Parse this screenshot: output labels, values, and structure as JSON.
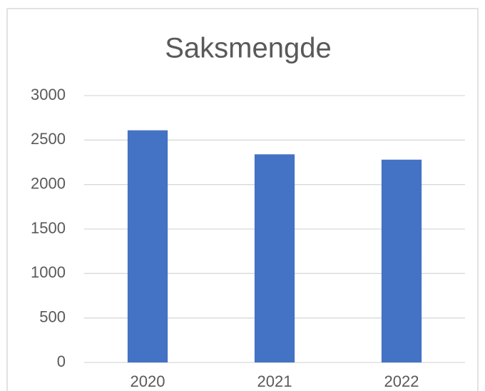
{
  "chart_data": {
    "type": "bar",
    "title": "Saksmengde",
    "categories": [
      "2020",
      "2021",
      "2022"
    ],
    "values": [
      2610,
      2340,
      2280
    ],
    "color": "#4472c4",
    "ylim": [
      0,
      3000
    ],
    "yticks": [
      0,
      500,
      1000,
      1500,
      2000,
      2500,
      3000
    ],
    "grid": true
  }
}
